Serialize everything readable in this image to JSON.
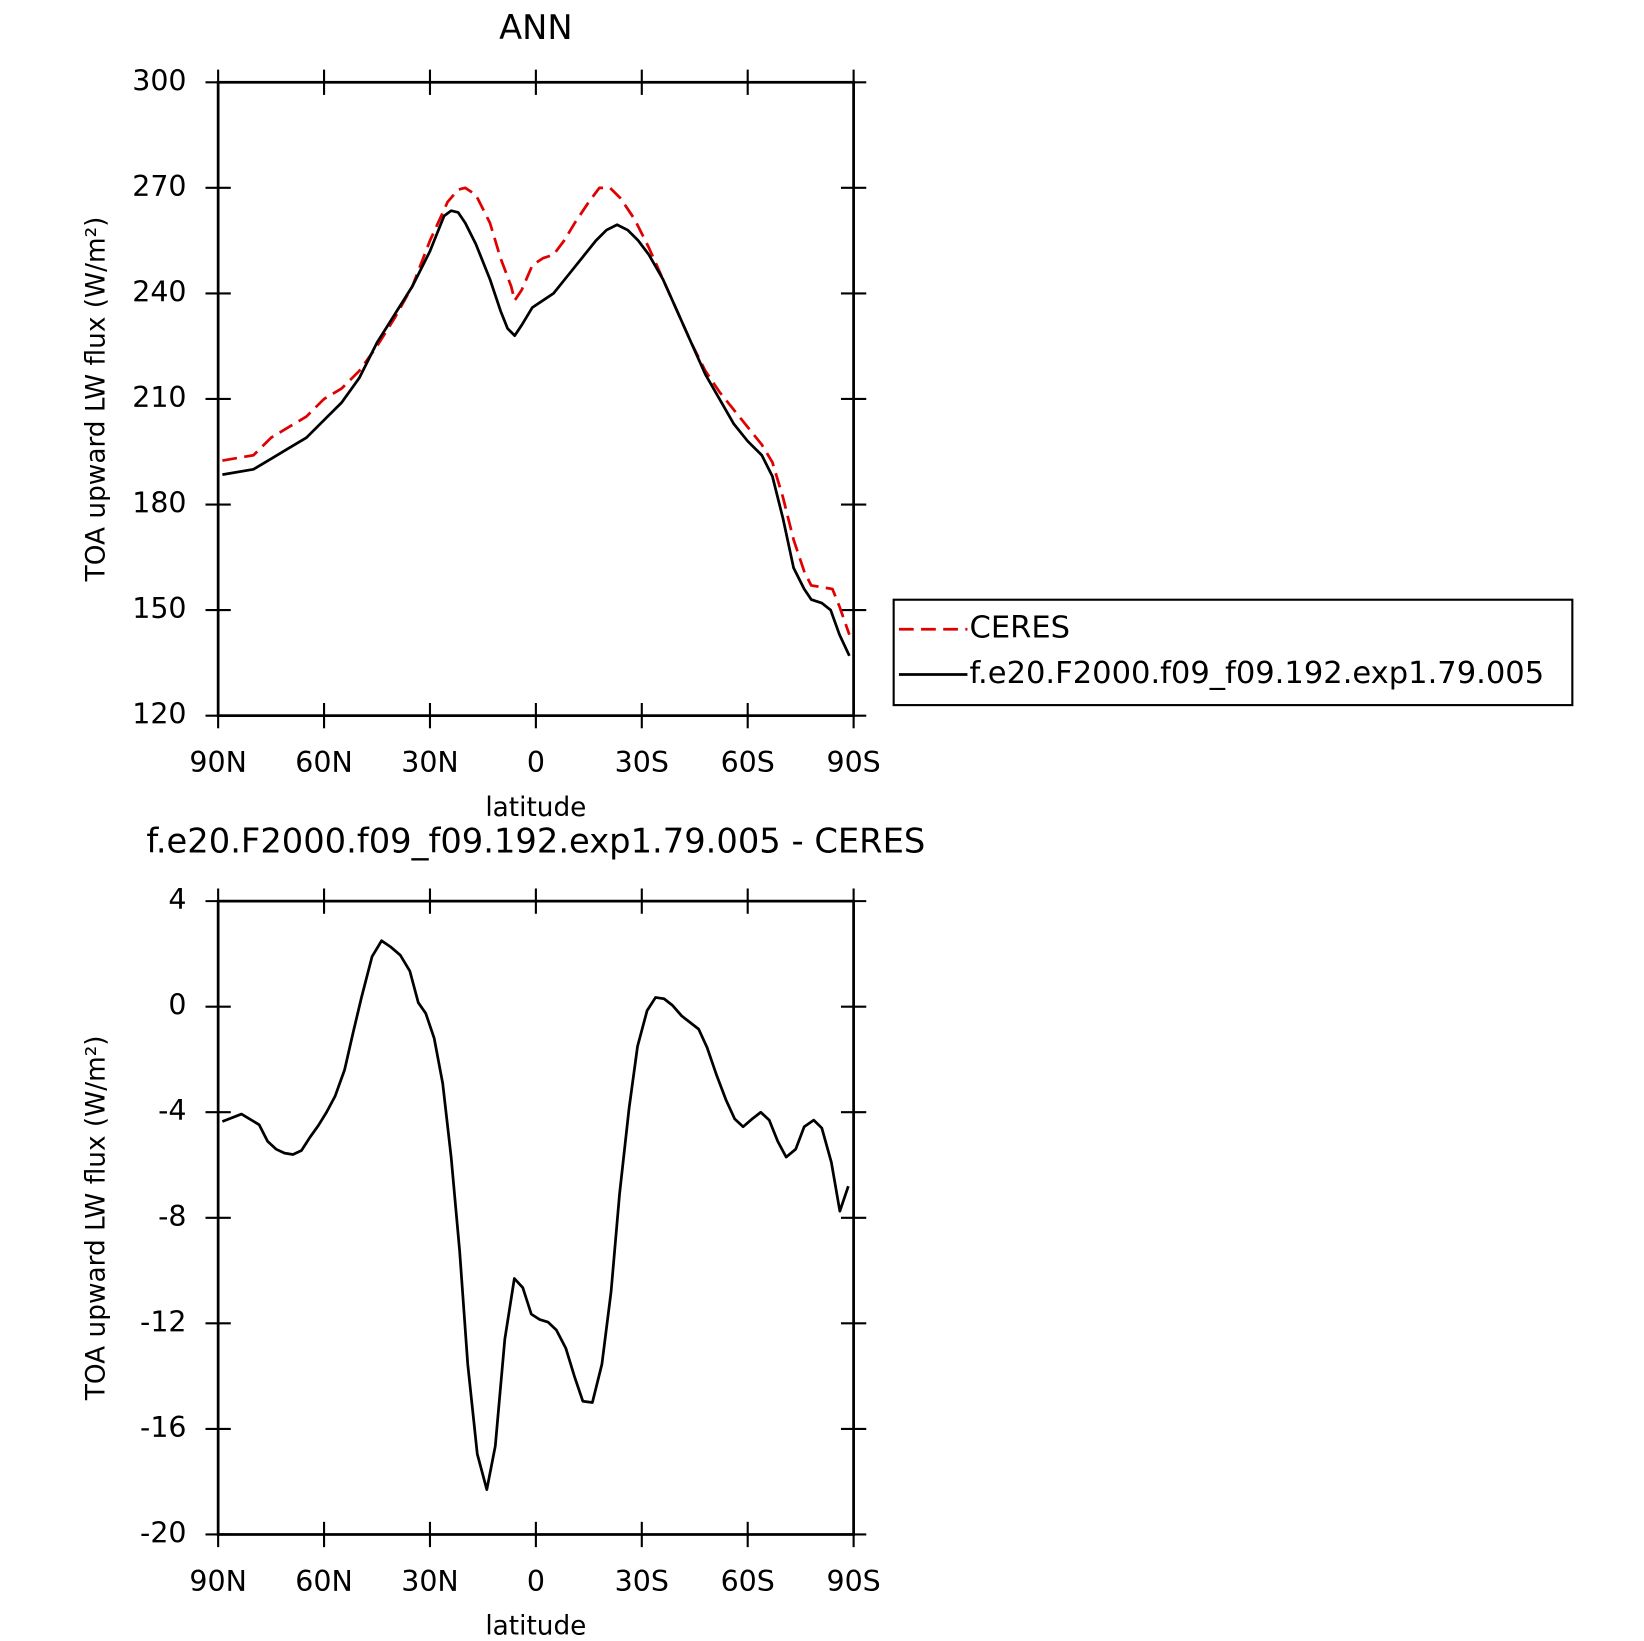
{
  "chart_data": [
    {
      "type": "line",
      "title": "ANN",
      "xlabel": "latitude",
      "ylabel": "TOA upward LW flux (W/m²)",
      "xlim": [
        90,
        -90
      ],
      "xticks": [
        {
          "value": 90,
          "label": "90N"
        },
        {
          "value": 60,
          "label": "60N"
        },
        {
          "value": 30,
          "label": "30N"
        },
        0,
        {
          "value": -30,
          "label": "30S"
        },
        {
          "value": -60,
          "label": "60S"
        },
        {
          "value": -90,
          "label": "90S"
        }
      ],
      "ylim": [
        120,
        300
      ],
      "yticks": [
        120,
        150,
        180,
        210,
        240,
        270,
        300
      ],
      "legend": "right",
      "series": [
        {
          "name": "CERES",
          "color": "#e00000",
          "dash": true,
          "x": [
            88.8,
            80,
            75,
            70,
            65,
            60,
            55,
            50,
            45,
            40,
            35,
            30,
            25,
            22,
            20,
            17,
            13,
            10,
            7,
            6,
            4,
            1,
            -2,
            -5,
            -8,
            -11,
            -15,
            -18,
            -21,
            -24,
            -28,
            -32,
            -36,
            -40,
            -44,
            -48,
            -52,
            -56,
            -60,
            -64,
            -67,
            -70,
            -73,
            -76,
            -78,
            -81,
            -84,
            -86,
            -88.8
          ],
          "values": [
            192.5,
            194,
            199,
            202,
            205,
            210,
            213,
            218,
            225,
            233,
            242,
            255,
            266,
            269.5,
            270,
            268,
            260,
            250,
            242,
            238,
            241,
            248,
            250,
            251,
            255,
            260,
            266,
            270,
            270,
            267,
            261,
            253,
            244,
            235,
            226,
            218,
            212,
            207,
            202,
            197,
            192,
            182,
            170,
            161,
            157,
            156.5,
            156,
            151,
            143
          ]
        },
        {
          "name": "f.e20.F2000.f09_f09.192.exp1.79.005",
          "color": "#000000",
          "dash": false,
          "x": [
            88.8,
            80,
            75,
            70,
            65,
            60,
            55,
            50,
            45,
            40,
            35,
            30,
            26,
            24,
            22,
            20,
            17,
            13,
            10,
            8,
            6,
            4,
            1,
            -2,
            -5,
            -9,
            -13,
            -17,
            -20,
            -23,
            -26,
            -29,
            -32,
            -36,
            -40,
            -44,
            -48,
            -52,
            -56,
            -60,
            -64,
            -67,
            -70,
            -73,
            -76,
            -78,
            -81,
            -83.5,
            -86,
            -88.8
          ],
          "values": [
            188.5,
            190,
            193,
            196,
            199,
            204,
            209,
            216,
            226,
            234,
            242,
            252,
            262,
            263.5,
            263,
            260,
            254,
            244,
            235,
            230,
            228,
            231,
            236,
            238,
            240,
            245,
            250,
            255,
            258,
            259.5,
            258,
            255,
            251,
            244,
            235,
            226,
            217,
            210,
            203,
            198,
            194,
            188,
            176,
            162,
            156,
            153,
            152,
            150,
            143,
            137
          ]
        }
      ]
    },
    {
      "type": "line",
      "title": "f.e20.F2000.f09_f09.192.exp1.79.005 - CERES",
      "xlabel": "latitude",
      "ylabel": "TOA upward LW flux (W/m²)",
      "xlim": [
        90,
        -90
      ],
      "xticks": [
        {
          "value": 90,
          "label": "90N"
        },
        {
          "value": 60,
          "label": "60N"
        },
        {
          "value": 30,
          "label": "30N"
        },
        0,
        {
          "value": -30,
          "label": "30S"
        },
        {
          "value": -60,
          "label": "60S"
        },
        {
          "value": -90,
          "label": "90S"
        }
      ],
      "ylim": [
        -20,
        4
      ],
      "yticks": [
        -20,
        -16,
        -12,
        -8,
        -4,
        0,
        4
      ],
      "series": [
        {
          "color": "#000000",
          "dash": false,
          "x": [
            88.8,
            83.4,
            78.4,
            76,
            73.6,
            71.2,
            68.8,
            66.4,
            64,
            61.6,
            59.3,
            56.9,
            54.2,
            51.8,
            49.4,
            46.4,
            43.7,
            41,
            38.4,
            35.7,
            33.3,
            31.2,
            28.8,
            26.4,
            24,
            21.6,
            19.3,
            16.6,
            13.9,
            11.5,
            8.8,
            6.1,
            3.7,
            1.3,
            -1,
            -3.4,
            -5.8,
            -8.5,
            -10.9,
            -13.3,
            -16,
            -18.7,
            -21.3,
            -23.7,
            -26.4,
            -28.8,
            -31.5,
            -33.9,
            -36.3,
            -38.7,
            -41.3,
            -43.7,
            -46.1,
            -48.5,
            -51.2,
            -53.9,
            -56.3,
            -58.7,
            -61.3,
            -63.7,
            -66.1,
            -68.5,
            -70.9,
            -73.6,
            -76,
            -78.7,
            -81,
            -83.7,
            -86.1,
            -88.5
          ],
          "values": [
            -4.35,
            -4.07,
            -4.47,
            -5.1,
            -5.4,
            -5.55,
            -5.6,
            -5.45,
            -4.95,
            -4.5,
            -4.0,
            -3.4,
            -2.4,
            -1.0,
            0.35,
            1.9,
            2.5,
            2.25,
            1.95,
            1.35,
            0.15,
            -0.25,
            -1.2,
            -2.9,
            -5.7,
            -9.25,
            -13.55,
            -16.95,
            -18.3,
            -16.65,
            -12.6,
            -10.3,
            -10.65,
            -11.65,
            -11.85,
            -11.95,
            -12.25,
            -12.95,
            -14.0,
            -14.95,
            -15.0,
            -13.55,
            -10.8,
            -7.1,
            -3.85,
            -1.5,
            -0.15,
            0.35,
            0.3,
            0.05,
            -0.35,
            -0.6,
            -0.85,
            -1.55,
            -2.6,
            -3.55,
            -4.25,
            -4.55,
            -4.25,
            -4.0,
            -4.3,
            -5.1,
            -5.7,
            -5.4,
            -4.55,
            -4.3,
            -4.6,
            -5.9,
            -7.75,
            -6.8
          ]
        }
      ]
    }
  ]
}
